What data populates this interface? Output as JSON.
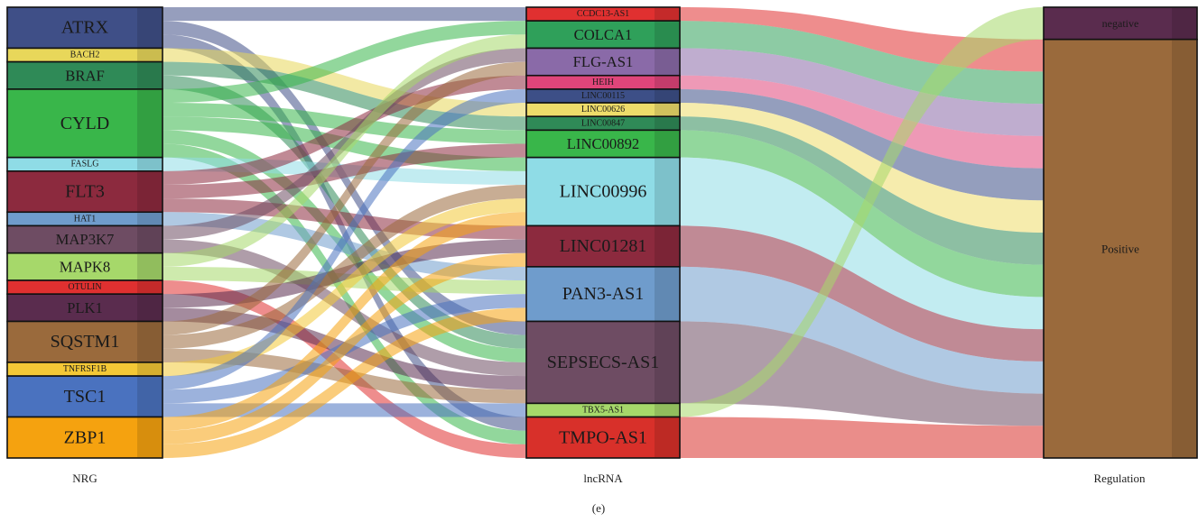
{
  "axes": [
    {
      "key": "nrg",
      "label": "NRG"
    },
    {
      "key": "lnc",
      "label": "lncRNA"
    },
    {
      "key": "reg",
      "label": "Regulation"
    }
  ],
  "caption": "(e)",
  "nrg_nodes": [
    {
      "name": "ATRX",
      "color": "#3f4f87"
    },
    {
      "name": "BACH2",
      "color": "#e8d75a"
    },
    {
      "name": "BRAF",
      "color": "#2f8a57"
    },
    {
      "name": "CYLD",
      "color": "#39b64a"
    },
    {
      "name": "FASLG",
      "color": "#8fdce6"
    },
    {
      "name": "FLT3",
      "color": "#8c2a3e"
    },
    {
      "name": "HAT1",
      "color": "#6f9ccc"
    },
    {
      "name": "MAP3K7",
      "color": "#6e4c63"
    },
    {
      "name": "MAPK8",
      "color": "#a6d86a"
    },
    {
      "name": "OTULIN",
      "color": "#e03030"
    },
    {
      "name": "PLK1",
      "color": "#5a2c4e"
    },
    {
      "name": "SQSTM1",
      "color": "#9a6a3c"
    },
    {
      "name": "TNFRSF1B",
      "color": "#f3c836"
    },
    {
      "name": "TSC1",
      "color": "#4a72bf"
    },
    {
      "name": "ZBP1",
      "color": "#f5a20f"
    }
  ],
  "lnc_nodes": [
    {
      "name": "CCDC13-AS1",
      "color": "#e03030"
    },
    {
      "name": "COLCA1",
      "color": "#2fa05a"
    },
    {
      "name": "FLG-AS1",
      "color": "#8a6aa8"
    },
    {
      "name": "HEIH",
      "color": "#e0457a"
    },
    {
      "name": "LINC00115",
      "color": "#3d4f87"
    },
    {
      "name": "LINC00626",
      "color": "#eedc6a"
    },
    {
      "name": "LINC00847",
      "color": "#2f8a57"
    },
    {
      "name": "LINC00892",
      "color": "#39b64a"
    },
    {
      "name": "LINC00996",
      "color": "#8fdce6"
    },
    {
      "name": "LINC01281",
      "color": "#8c2a3e"
    },
    {
      "name": "PAN3-AS1",
      "color": "#6f9ccc"
    },
    {
      "name": "SEPSECS-AS1",
      "color": "#6e4c63"
    },
    {
      "name": "TBX5-AS1",
      "color": "#a6d86a"
    },
    {
      "name": "TMPO-AS1",
      "color": "#d8302a"
    }
  ],
  "reg_nodes": [
    {
      "name": "negative",
      "color": "#5a2c4e"
    },
    {
      "name": "Positive",
      "color": "#9a6a3c"
    }
  ],
  "links": [
    {
      "source": "ATRX",
      "target": "CCDC13-AS1"
    },
    {
      "source": "ATRX",
      "target": "SEPSECS-AS1"
    },
    {
      "source": "ATRX",
      "target": "TMPO-AS1"
    },
    {
      "source": "BACH2",
      "target": "LINC00626"
    },
    {
      "source": "BRAF",
      "target": "LINC00847"
    },
    {
      "source": "BRAF",
      "target": "SEPSECS-AS1"
    },
    {
      "source": "CYLD",
      "target": "COLCA1"
    },
    {
      "source": "CYLD",
      "target": "LINC00892"
    },
    {
      "source": "CYLD",
      "target": "LINC00996"
    },
    {
      "source": "CYLD",
      "target": "SEPSECS-AS1"
    },
    {
      "source": "CYLD",
      "target": "TMPO-AS1"
    },
    {
      "source": "FASLG",
      "target": "LINC00996"
    },
    {
      "source": "FLT3",
      "target": "LINC01281"
    },
    {
      "source": "FLT3",
      "target": "HEIH"
    },
    {
      "source": "FLT3",
      "target": "LINC00892"
    },
    {
      "source": "HAT1",
      "target": "PAN3-AS1"
    },
    {
      "source": "MAP3K7",
      "target": "FLG-AS1"
    },
    {
      "source": "MAP3K7",
      "target": "SEPSECS-AS1"
    },
    {
      "source": "MAPK8",
      "target": "COLCA1"
    },
    {
      "source": "MAPK8",
      "target": "PAN3-AS1"
    },
    {
      "source": "OTULIN",
      "target": "TMPO-AS1"
    },
    {
      "source": "PLK1",
      "target": "LINC01281"
    },
    {
      "source": "PLK1",
      "target": "SEPSECS-AS1"
    },
    {
      "source": "SQSTM1",
      "target": "FLG-AS1"
    },
    {
      "source": "SQSTM1",
      "target": "LINC00996"
    },
    {
      "source": "SQSTM1",
      "target": "SEPSECS-AS1"
    },
    {
      "source": "TNFRSF1B",
      "target": "LINC00996"
    },
    {
      "source": "TSC1",
      "target": "LINC00115"
    },
    {
      "source": "TSC1",
      "target": "PAN3-AS1"
    },
    {
      "source": "TSC1",
      "target": "TBX5-AS1"
    },
    {
      "source": "ZBP1",
      "target": "LINC00996"
    },
    {
      "source": "ZBP1",
      "target": "LINC01281"
    },
    {
      "source": "ZBP1",
      "target": "PAN3-AS1"
    },
    {
      "source": "CCDC13-AS1",
      "target": "Positive"
    },
    {
      "source": "COLCA1",
      "target": "Positive"
    },
    {
      "source": "FLG-AS1",
      "target": "Positive"
    },
    {
      "source": "HEIH",
      "target": "Positive"
    },
    {
      "source": "LINC00115",
      "target": "Positive"
    },
    {
      "source": "LINC00626",
      "target": "Positive"
    },
    {
      "source": "LINC00847",
      "target": "Positive"
    },
    {
      "source": "LINC00892",
      "target": "Positive"
    },
    {
      "source": "LINC00996",
      "target": "Positive"
    },
    {
      "source": "LINC01281",
      "target": "Positive"
    },
    {
      "source": "PAN3-AS1",
      "target": "Positive"
    },
    {
      "source": "SEPSECS-AS1",
      "target": "Positive"
    },
    {
      "source": "TBX5-AS1",
      "target": "negative"
    },
    {
      "source": "TMPO-AS1",
      "target": "Positive"
    }
  ]
}
